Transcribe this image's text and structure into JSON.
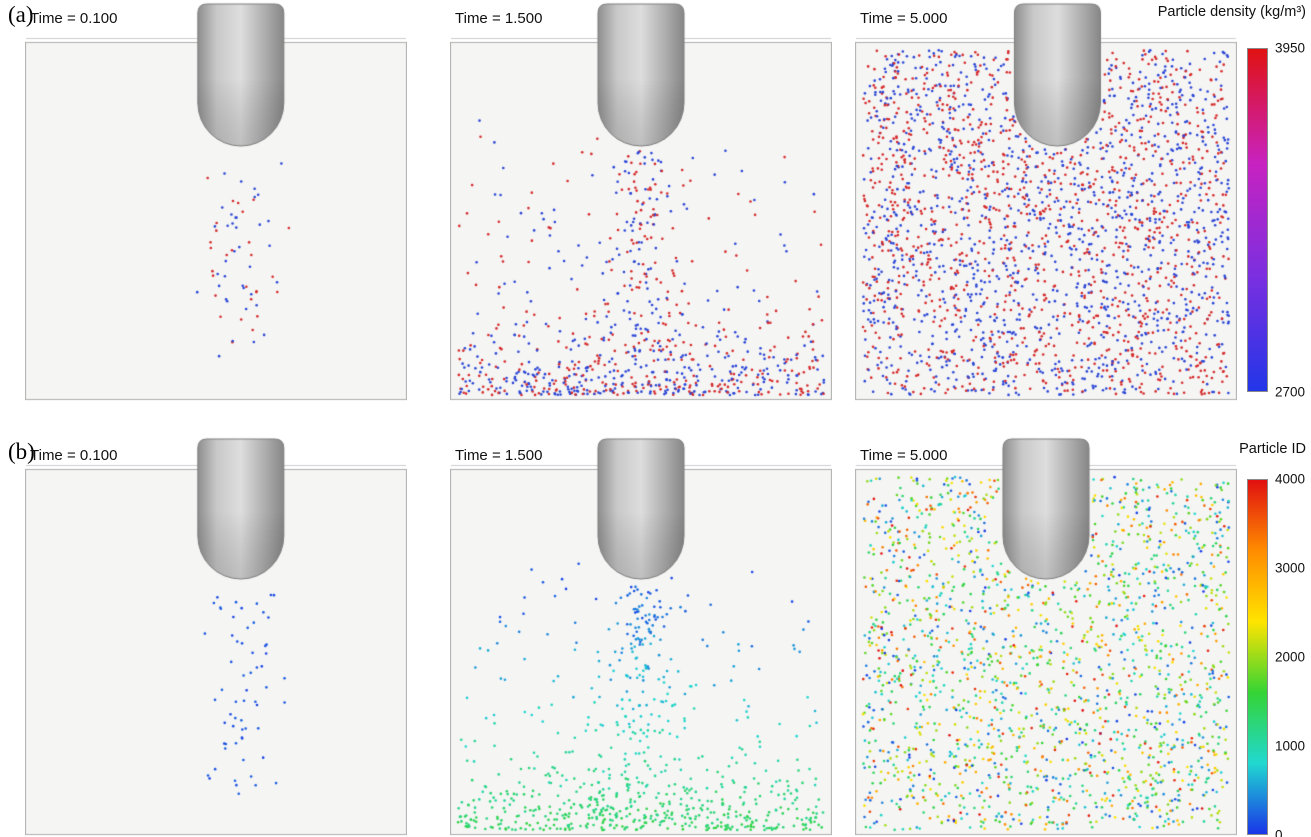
{
  "figure": {
    "rows": [
      {
        "label": "(a)",
        "colorbar": {
          "title": "Particle density (kg/m³)",
          "tick_labels": [
            "3950",
            "2700"
          ],
          "gradient": [
            "#e01212",
            "#c822c0",
            "#7a2fe0",
            "#2236e8"
          ]
        },
        "particle_colors": {
          "high": "#d62b2b",
          "low": "#2b46d6"
        },
        "panels": [
          {
            "time_label": "Time = 0.100",
            "stage": "early",
            "count": 65,
            "seed": 101,
            "palette": "density",
            "probe_x": 0.565
          },
          {
            "time_label": "Time = 1.500",
            "stage": "mid",
            "count": 820,
            "seed": 102,
            "palette": "density",
            "probe_x": 0.5
          },
          {
            "time_label": "Time = 5.000",
            "stage": "late",
            "count": 2450,
            "seed": 103,
            "palette": "density",
            "probe_x": 0.53
          }
        ]
      },
      {
        "label": "(b)",
        "colorbar": {
          "title": "Particle ID",
          "tick_labels": [
            "4000",
            "3000",
            "2000",
            "1000",
            "0"
          ],
          "gradient": [
            "#e01010",
            "#ff8c00",
            "#ffe400",
            "#35d435",
            "#20d8d0",
            "#1a35e8"
          ]
        },
        "panels": [
          {
            "time_label": "Time = 0.100",
            "stage": "early",
            "count": 62,
            "seed": 201,
            "palette": "id",
            "probe_x": 0.565
          },
          {
            "time_label": "Time = 1.500",
            "stage": "mid",
            "count": 760,
            "seed": 202,
            "palette": "id",
            "probe_x": 0.5
          },
          {
            "time_label": "Time = 5.000",
            "stage": "late",
            "count": 1900,
            "seed": 203,
            "palette": "id",
            "probe_x": 0.5
          }
        ]
      }
    ]
  }
}
